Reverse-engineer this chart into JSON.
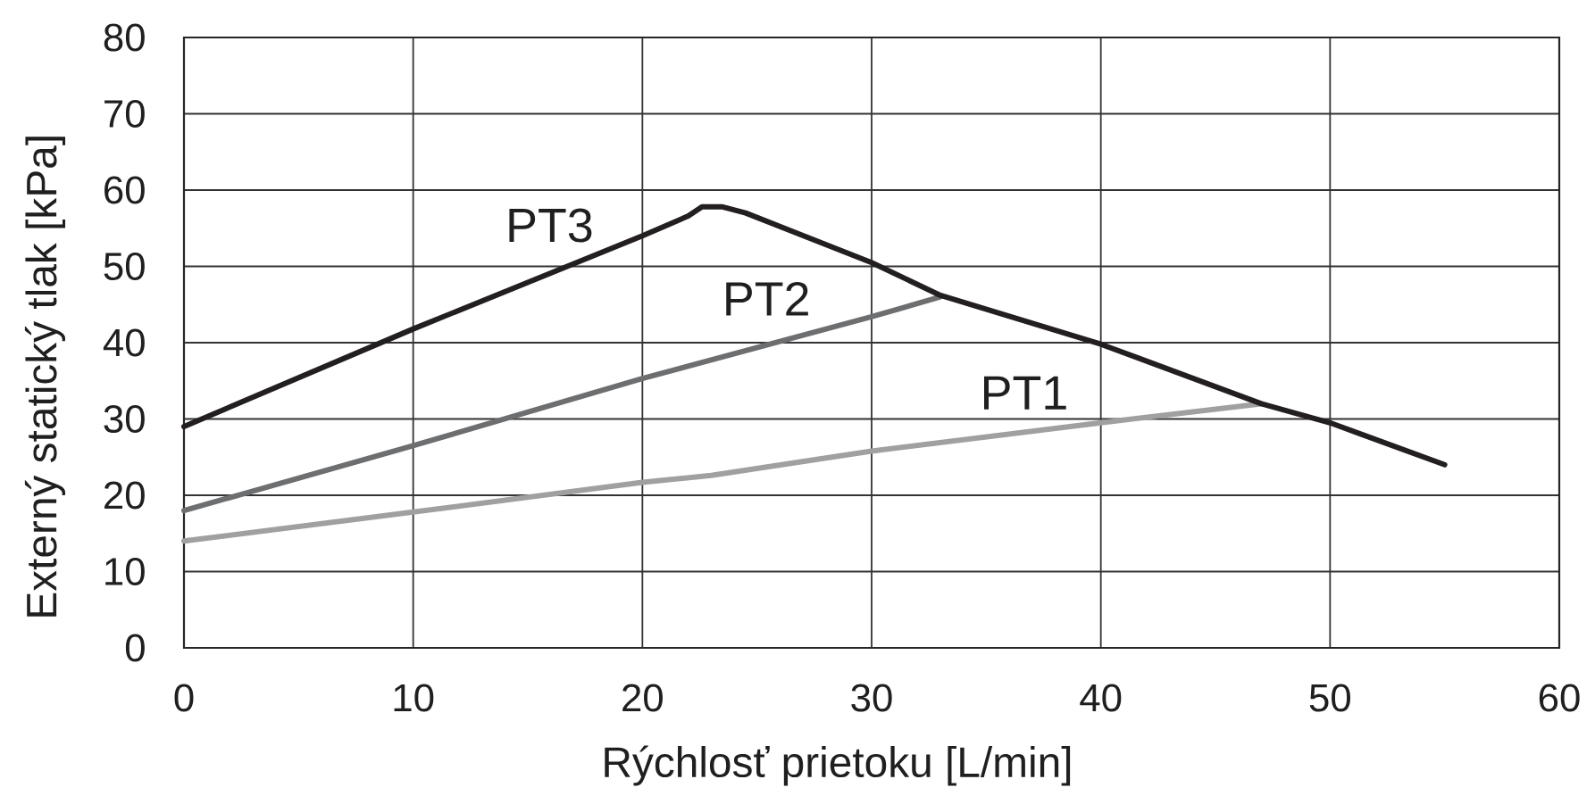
{
  "chart_data": {
    "type": "line",
    "xlabel": "Rýchlosť prietoku [L/min]",
    "ylabel": "Externý statický tlak [kPa]",
    "xlim": [
      0,
      60
    ],
    "ylim": [
      0,
      80
    ],
    "xticks": [
      0,
      10,
      20,
      30,
      40,
      50,
      60
    ],
    "yticks": [
      0,
      10,
      20,
      30,
      40,
      50,
      60,
      70,
      80
    ],
    "grid": true,
    "line_style": "solid",
    "series": [
      {
        "name": "PT1",
        "color": "#a0a0a0",
        "x": [
          0,
          10,
          20,
          23,
          30,
          40,
          47
        ],
        "values": [
          14,
          17.8,
          21.7,
          22.6,
          25.8,
          29.5,
          32
        ]
      },
      {
        "name": "PT2",
        "color": "#6d6e70",
        "x": [
          0,
          10,
          20,
          30,
          33
        ],
        "values": [
          18,
          26.5,
          35.3,
          43.4,
          46
        ]
      },
      {
        "name": "PT3",
        "color": "#231f20",
        "x": [
          0,
          10,
          20,
          22,
          22.6,
          23.5,
          24.5,
          30,
          33,
          40,
          47,
          50,
          55
        ],
        "values": [
          29,
          41.8,
          54,
          56.6,
          57.8,
          57.8,
          57,
          50.5,
          46.2,
          39.8,
          32,
          29.5,
          24
        ]
      }
    ]
  }
}
